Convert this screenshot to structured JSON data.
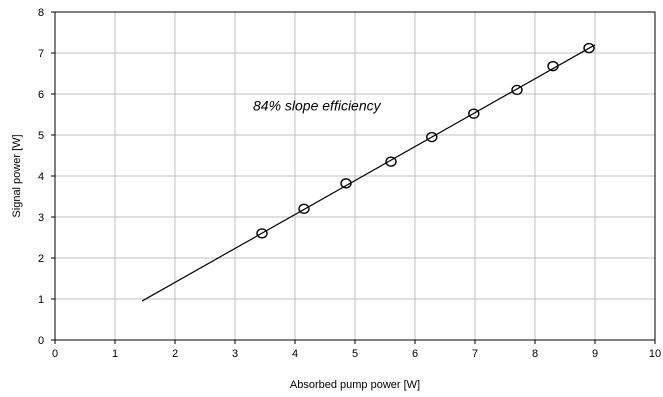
{
  "chart_data": {
    "type": "scatter",
    "title": "",
    "xlabel": "Absorbed pump power [W]",
    "ylabel": "Signal power [W]",
    "xlim": [
      0,
      10
    ],
    "ylim": [
      0,
      8
    ],
    "x_ticks": [
      "0",
      "1",
      "2",
      "3",
      "4",
      "5",
      "6",
      "7",
      "8",
      "9",
      "10"
    ],
    "y_ticks": [
      "0",
      "1",
      "2",
      "3",
      "4",
      "5",
      "6",
      "7",
      "8"
    ],
    "grid": true,
    "annotations": [
      {
        "text": "84% slope efficiency",
        "x": 3.3,
        "y": 5.6
      }
    ],
    "series": [
      {
        "type": "scatter",
        "marker": "circle",
        "x": [
          3.45,
          4.15,
          4.85,
          5.6,
          6.28,
          6.98,
          7.7,
          8.3,
          8.9
        ],
        "y": [
          2.6,
          3.2,
          3.82,
          4.35,
          4.95,
          5.52,
          6.1,
          6.68,
          7.12
        ]
      },
      {
        "type": "line",
        "x": [
          1.45,
          9.0
        ],
        "y": [
          0.95,
          7.2
        ]
      }
    ]
  }
}
